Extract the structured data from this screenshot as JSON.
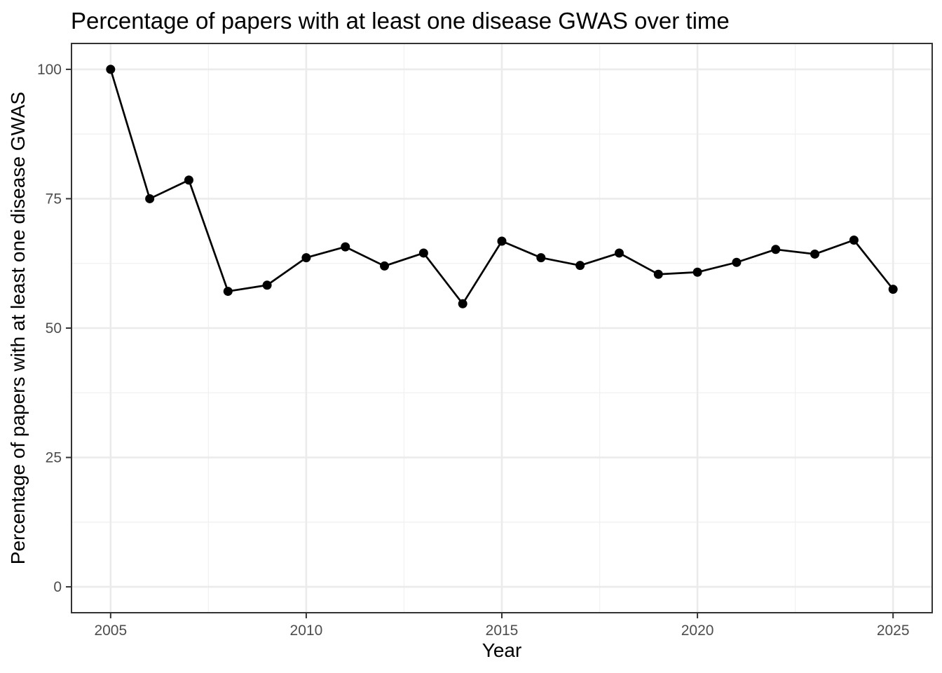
{
  "chart_data": {
    "type": "line",
    "title": "Percentage of papers with at least one disease GWAS over time",
    "xlabel": "Year",
    "ylabel": "Percentage of papers with at least one disease GWAS",
    "x": [
      2005,
      2006,
      2007,
      2008,
      2009,
      2010,
      2011,
      2012,
      2013,
      2014,
      2015,
      2016,
      2017,
      2018,
      2019,
      2020,
      2021,
      2022,
      2023,
      2024,
      2025
    ],
    "y": [
      100,
      75,
      78.6,
      57.1,
      58.3,
      63.6,
      65.7,
      62.0,
      64.5,
      54.7,
      66.8,
      63.6,
      62.1,
      64.5,
      60.4,
      60.8,
      62.7,
      65.2,
      64.3,
      67.0,
      57.5
    ],
    "x_ticks": [
      2005,
      2010,
      2015,
      2020,
      2025
    ],
    "y_ticks": [
      0,
      25,
      50,
      75,
      100
    ],
    "x_minor_gridlines": [
      2007.5,
      2012.5,
      2017.5,
      2022.5
    ],
    "y_minor_gridlines": [
      12.5,
      37.5,
      62.5,
      87.5
    ],
    "xlim": [
      2004,
      2026
    ],
    "ylim": [
      -5,
      105
    ],
    "grid": true,
    "legend": false,
    "style": "ggplot-theme-bw",
    "colors": {
      "line": "#000000",
      "point": "#000000",
      "grid_major": "#ebebeb",
      "grid_minor": "#f1f1f1",
      "panel_border": "#333333",
      "tick_mark": "#333333",
      "tick_label": "#4d4d4d",
      "title_text": "#000000",
      "background": "#ffffff"
    }
  }
}
